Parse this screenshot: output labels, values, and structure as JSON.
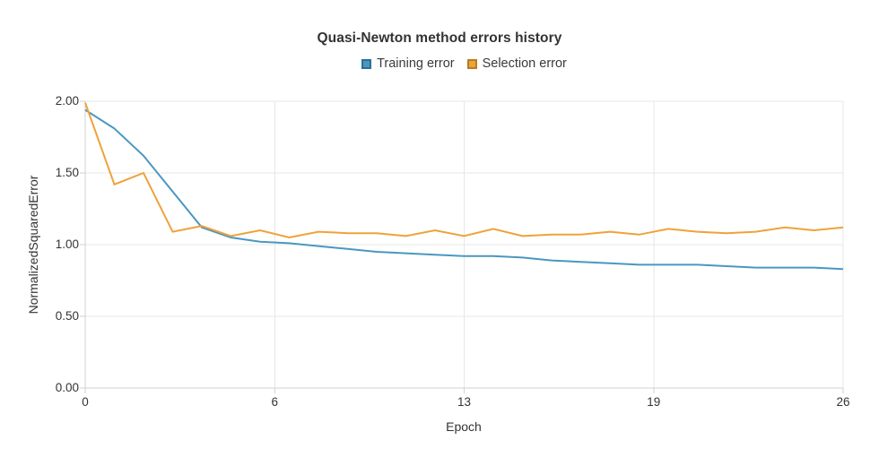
{
  "page": {
    "background": "#ffffff"
  },
  "colors": {
    "grid": "#e7e7e7",
    "axis": "#d2d2d2",
    "text": "#333333",
    "training_line": "#4a97c1",
    "training_swatch_border": "#2e6e96",
    "selection_line": "#efa23a",
    "selection_swatch_border": "#ba7b1e"
  },
  "chart_data": {
    "type": "line",
    "title": "Quasi-Newton method errors history",
    "xlabel": "Epoch",
    "ylabel": "NormalizedSquaredError",
    "xlim": [
      0,
      26
    ],
    "ylim": [
      0.0,
      2.0
    ],
    "x_tick_labels": [
      "0",
      "6",
      "13",
      "19",
      "26"
    ],
    "y_tick_labels": [
      "0.00",
      "0.50",
      "1.00",
      "1.50",
      "2.00"
    ],
    "grid": true,
    "legend_position": "top-center",
    "x": [
      0,
      1,
      2,
      3,
      4,
      5,
      6,
      7,
      8,
      9,
      10,
      11,
      12,
      13,
      14,
      15,
      16,
      17,
      18,
      19,
      20,
      21,
      22,
      23,
      24,
      25,
      26
    ],
    "series": [
      {
        "name": "Training error",
        "color": "#4a97c1",
        "swatch_border": "#2e6e96",
        "values": [
          1.94,
          1.81,
          1.62,
          1.37,
          1.12,
          1.05,
          1.02,
          1.01,
          0.99,
          0.97,
          0.95,
          0.94,
          0.93,
          0.92,
          0.92,
          0.91,
          0.89,
          0.88,
          0.87,
          0.86,
          0.86,
          0.86,
          0.85,
          0.84,
          0.84,
          0.84,
          0.83
        ]
      },
      {
        "name": "Selection error",
        "color": "#efa23a",
        "swatch_border": "#ba7b1e",
        "values": [
          1.99,
          1.42,
          1.5,
          1.09,
          1.13,
          1.06,
          1.1,
          1.05,
          1.09,
          1.08,
          1.08,
          1.06,
          1.1,
          1.06,
          1.11,
          1.06,
          1.07,
          1.07,
          1.09,
          1.07,
          1.11,
          1.09,
          1.08,
          1.09,
          1.12,
          1.1,
          1.12
        ]
      }
    ]
  }
}
